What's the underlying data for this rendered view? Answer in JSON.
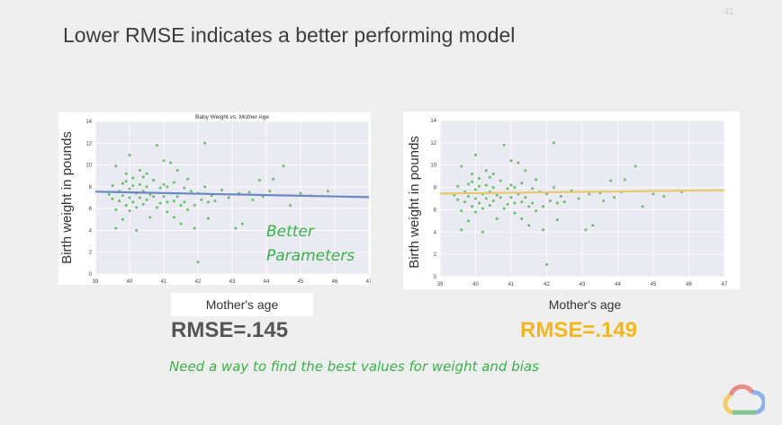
{
  "slide_number": "41",
  "title": "Lower RMSE indicates a better performing model",
  "colors": {
    "fit_left": "#6b88c2",
    "fit_right": "#e9c86a",
    "point": "#5cb85c",
    "note": "#3bb14a",
    "rmse_left": "#555555",
    "rmse_right": "#f2b71c"
  },
  "annotations": {
    "better": "Better",
    "parameters": "Parameters",
    "bottom_note": "Need a way to find the best values for weight and bias"
  },
  "left_panel": {
    "ylabel": "Birth weight in pounds",
    "xlabel": "Mother's age",
    "rmse": "RMSE=.145"
  },
  "right_panel": {
    "ylabel": "Birth weight in pounds",
    "xlabel": "Mother's age",
    "rmse": "RMSE=.149"
  },
  "logo": {
    "icon": "google-cloud-logo-icon"
  },
  "chart_data": [
    {
      "type": "scatter",
      "title": "Baby Weight vs. Mother Age",
      "xlabel": "",
      "ylabel": "",
      "xlim": [
        39,
        47
      ],
      "ylim": [
        0,
        14
      ],
      "x_ticks": [
        39,
        40,
        41,
        42,
        43,
        44,
        45,
        46,
        47
      ],
      "y_ticks": [
        0,
        2,
        4,
        6,
        8,
        10,
        12,
        14
      ],
      "grid": true,
      "fit_line": {
        "x": [
          39,
          47
        ],
        "y": [
          7.55,
          7.05
        ]
      },
      "points": [
        [
          39.4,
          7.3
        ],
        [
          39.5,
          8.1
        ],
        [
          39.5,
          6.9
        ],
        [
          39.6,
          9.9
        ],
        [
          39.6,
          5.9
        ],
        [
          39.6,
          4.2
        ],
        [
          39.7,
          7.6
        ],
        [
          39.7,
          6.7
        ],
        [
          39.8,
          8.3
        ],
        [
          39.8,
          7.2
        ],
        [
          39.8,
          5.0
        ],
        [
          39.9,
          9.2
        ],
        [
          39.9,
          8.5
        ],
        [
          39.9,
          6.3
        ],
        [
          40.0,
          10.9
        ],
        [
          40.0,
          7.8
        ],
        [
          40.0,
          7.0
        ],
        [
          40.0,
          5.8
        ],
        [
          40.1,
          8.8
        ],
        [
          40.1,
          8.1
        ],
        [
          40.1,
          6.6
        ],
        [
          40.2,
          7.4
        ],
        [
          40.2,
          6.1
        ],
        [
          40.2,
          4.0
        ],
        [
          40.3,
          9.5
        ],
        [
          40.3,
          8.2
        ],
        [
          40.3,
          7.0
        ],
        [
          40.4,
          8.9
        ],
        [
          40.4,
          7.6
        ],
        [
          40.4,
          6.4
        ],
        [
          40.5,
          9.2
        ],
        [
          40.5,
          8.0
        ],
        [
          40.5,
          6.8
        ],
        [
          40.6,
          7.3
        ],
        [
          40.6,
          5.2
        ],
        [
          40.7,
          8.6
        ],
        [
          40.7,
          7.1
        ],
        [
          40.8,
          11.8
        ],
        [
          40.8,
          6.1
        ],
        [
          40.9,
          7.9
        ],
        [
          40.9,
          6.5
        ],
        [
          41.0,
          10.4
        ],
        [
          41.0,
          8.2
        ],
        [
          41.0,
          7.1
        ],
        [
          41.1,
          8.0
        ],
        [
          41.1,
          6.6
        ],
        [
          41.1,
          5.7
        ],
        [
          41.2,
          7.4
        ],
        [
          41.2,
          10.2
        ],
        [
          41.3,
          8.4
        ],
        [
          41.3,
          6.7
        ],
        [
          41.3,
          5.2
        ],
        [
          41.4,
          9.5
        ],
        [
          41.4,
          7.1
        ],
        [
          41.5,
          6.3
        ],
        [
          41.5,
          4.6
        ],
        [
          41.6,
          7.9
        ],
        [
          41.6,
          6.6
        ],
        [
          41.7,
          8.7
        ],
        [
          41.7,
          5.9
        ],
        [
          41.8,
          7.6
        ],
        [
          41.9,
          6.3
        ],
        [
          41.9,
          4.2
        ],
        [
          42.0,
          7.4
        ],
        [
          42.0,
          1.1
        ],
        [
          42.1,
          6.8
        ],
        [
          42.2,
          12.0
        ],
        [
          42.2,
          8.0
        ],
        [
          42.3,
          6.6
        ],
        [
          42.3,
          5.1
        ],
        [
          42.4,
          7.2
        ],
        [
          42.5,
          6.7
        ],
        [
          42.7,
          7.7
        ],
        [
          42.9,
          7.0
        ],
        [
          43.1,
          4.2
        ],
        [
          43.2,
          7.4
        ],
        [
          43.3,
          4.6
        ],
        [
          43.5,
          7.5
        ],
        [
          43.6,
          6.8
        ],
        [
          43.8,
          8.6
        ],
        [
          43.9,
          7.1
        ],
        [
          44.1,
          7.6
        ],
        [
          44.2,
          8.7
        ],
        [
          44.5,
          9.9
        ],
        [
          44.7,
          6.3
        ],
        [
          45.0,
          7.4
        ],
        [
          45.3,
          7.2
        ],
        [
          45.8,
          7.6
        ]
      ]
    },
    {
      "type": "scatter",
      "title": "",
      "xlabel": "",
      "ylabel": "",
      "xlim": [
        39,
        47
      ],
      "ylim": [
        0,
        14
      ],
      "x_ticks": [
        39,
        40,
        41,
        42,
        43,
        44,
        45,
        46,
        47
      ],
      "y_ticks": [
        0,
        2,
        4,
        6,
        8,
        10,
        12,
        14
      ],
      "grid": true,
      "fit_line": {
        "x": [
          39,
          47
        ],
        "y": [
          7.45,
          7.75
        ]
      },
      "points": [
        [
          39.4,
          7.3
        ],
        [
          39.5,
          8.1
        ],
        [
          39.5,
          6.9
        ],
        [
          39.6,
          9.9
        ],
        [
          39.6,
          5.9
        ],
        [
          39.6,
          4.2
        ],
        [
          39.7,
          7.6
        ],
        [
          39.7,
          6.7
        ],
        [
          39.8,
          8.3
        ],
        [
          39.8,
          7.2
        ],
        [
          39.8,
          5.0
        ],
        [
          39.9,
          9.2
        ],
        [
          39.9,
          8.5
        ],
        [
          39.9,
          6.3
        ],
        [
          40.0,
          10.9
        ],
        [
          40.0,
          7.8
        ],
        [
          40.0,
          7.0
        ],
        [
          40.0,
          5.8
        ],
        [
          40.1,
          8.8
        ],
        [
          40.1,
          8.1
        ],
        [
          40.1,
          6.6
        ],
        [
          40.2,
          7.4
        ],
        [
          40.2,
          6.1
        ],
        [
          40.2,
          4.0
        ],
        [
          40.3,
          9.5
        ],
        [
          40.3,
          8.2
        ],
        [
          40.3,
          7.0
        ],
        [
          40.4,
          8.9
        ],
        [
          40.4,
          7.6
        ],
        [
          40.4,
          6.4
        ],
        [
          40.5,
          9.2
        ],
        [
          40.5,
          8.0
        ],
        [
          40.5,
          6.8
        ],
        [
          40.6,
          7.3
        ],
        [
          40.6,
          5.2
        ],
        [
          40.7,
          8.6
        ],
        [
          40.7,
          7.1
        ],
        [
          40.8,
          11.8
        ],
        [
          40.8,
          6.1
        ],
        [
          40.9,
          7.9
        ],
        [
          40.9,
          6.5
        ],
        [
          41.0,
          10.4
        ],
        [
          41.0,
          8.2
        ],
        [
          41.0,
          7.1
        ],
        [
          41.1,
          8.0
        ],
        [
          41.1,
          6.6
        ],
        [
          41.1,
          5.7
        ],
        [
          41.2,
          7.4
        ],
        [
          41.2,
          10.2
        ],
        [
          41.3,
          8.4
        ],
        [
          41.3,
          6.7
        ],
        [
          41.3,
          5.2
        ],
        [
          41.4,
          9.5
        ],
        [
          41.4,
          7.1
        ],
        [
          41.5,
          6.3
        ],
        [
          41.5,
          4.6
        ],
        [
          41.6,
          7.9
        ],
        [
          41.6,
          6.6
        ],
        [
          41.7,
          8.7
        ],
        [
          41.7,
          5.9
        ],
        [
          41.8,
          7.6
        ],
        [
          41.9,
          6.3
        ],
        [
          41.9,
          4.2
        ],
        [
          42.0,
          7.4
        ],
        [
          42.0,
          1.1
        ],
        [
          42.1,
          6.8
        ],
        [
          42.2,
          12.0
        ],
        [
          42.2,
          8.0
        ],
        [
          42.3,
          6.6
        ],
        [
          42.3,
          5.1
        ],
        [
          42.4,
          7.2
        ],
        [
          42.5,
          6.7
        ],
        [
          42.7,
          7.7
        ],
        [
          42.9,
          7.0
        ],
        [
          43.1,
          4.2
        ],
        [
          43.2,
          7.4
        ],
        [
          43.3,
          4.6
        ],
        [
          43.5,
          7.5
        ],
        [
          43.6,
          6.8
        ],
        [
          43.8,
          8.6
        ],
        [
          43.9,
          7.1
        ],
        [
          44.1,
          7.6
        ],
        [
          44.2,
          8.7
        ],
        [
          44.5,
          9.9
        ],
        [
          44.7,
          6.3
        ],
        [
          45.0,
          7.4
        ],
        [
          45.3,
          7.2
        ],
        [
          45.8,
          7.6
        ]
      ]
    }
  ]
}
